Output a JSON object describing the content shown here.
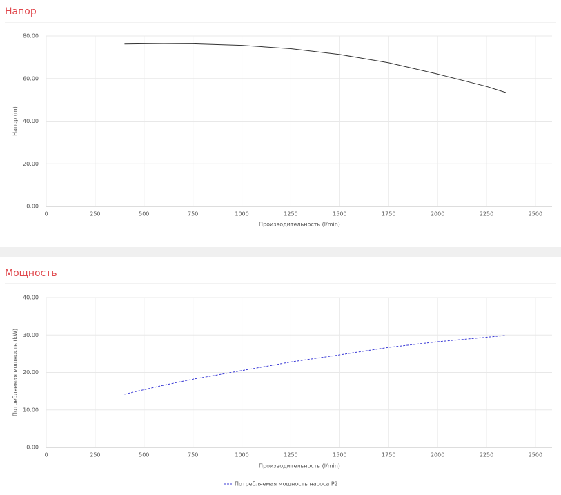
{
  "chart_data": [
    {
      "type": "line",
      "title": "Напор",
      "y_label": "Напор (m)",
      "x_label": "Производительность (l/min)",
      "xlim": [
        0,
        2585
      ],
      "xticks": [
        0,
        250,
        500,
        750,
        1000,
        1250,
        1500,
        1750,
        2000,
        2250,
        2500
      ],
      "ylim": [
        0,
        80
      ],
      "yticks": [
        {
          "value": 0,
          "label": "0.00"
        },
        {
          "value": 20,
          "label": "20.00"
        },
        {
          "value": 40,
          "label": "40.00"
        },
        {
          "value": 60,
          "label": "60.00"
        },
        {
          "value": 80,
          "label": "80.00"
        }
      ],
      "grid": true,
      "x": [
        400,
        500,
        600,
        750,
        1000,
        1250,
        1500,
        1750,
        2000,
        2250,
        2350
      ],
      "series": [
        {
          "color": "#333333",
          "dashed": false,
          "values": [
            76.2,
            76.3,
            76.4,
            76.3,
            75.6,
            74.0,
            71.3,
            67.4,
            62.1,
            56.3,
            53.4
          ]
        }
      ]
    },
    {
      "type": "line",
      "title": "Мощность",
      "y_label": "Потребляемая мощность (kW)",
      "x_label": "Производительность (l/min)",
      "xlim": [
        0,
        2585
      ],
      "xticks": [
        0,
        250,
        500,
        750,
        1000,
        1250,
        1500,
        1750,
        2000,
        2250,
        2500
      ],
      "ylim": [
        0,
        40
      ],
      "yticks": [
        {
          "value": 0,
          "label": "0.00"
        },
        {
          "value": 10,
          "label": "10.00"
        },
        {
          "value": 20,
          "label": "20.00"
        },
        {
          "value": 30,
          "label": "30.00"
        },
        {
          "value": 40,
          "label": "40.00"
        }
      ],
      "grid": true,
      "x": [
        400,
        500,
        600,
        750,
        1000,
        1250,
        1500,
        1750,
        2000,
        2250,
        2350
      ],
      "series": [
        {
          "name": "Потребляемая мощность насоса P2",
          "color": "#3b3bd6",
          "dashed": true,
          "values": [
            14.2,
            15.4,
            16.6,
            18.2,
            20.5,
            22.8,
            24.7,
            26.7,
            28.2,
            29.4,
            29.9
          ]
        }
      ]
    }
  ]
}
